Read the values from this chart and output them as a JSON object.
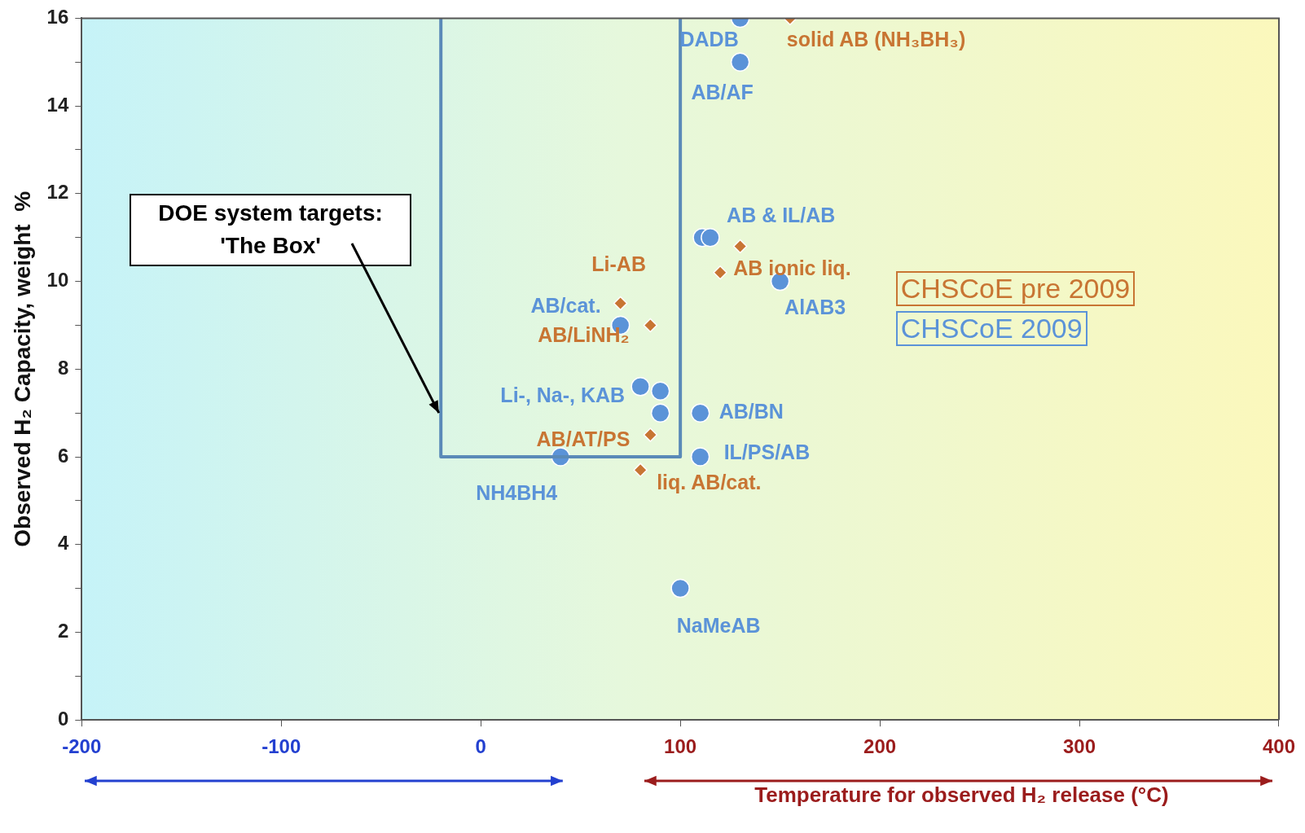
{
  "chart_data": {
    "type": "scatter",
    "xlabel": "Temperature for observed H₂ release (°C)",
    "ylabel": "Observed H₂ Capacity, weight  %",
    "xlim": [
      -200,
      400
    ],
    "xticks": [
      -200,
      -100,
      0,
      100,
      200,
      300,
      400
    ],
    "ylim": [
      0,
      16
    ],
    "yticks": [
      0,
      {
        "value": 1,
        "label": null
      },
      2,
      {
        "value": 3,
        "label": null
      },
      4,
      {
        "value": 5,
        "label": null
      },
      6,
      {
        "value": 7,
        "label": null
      },
      8,
      {
        "value": 9,
        "label": null
      },
      10,
      {
        "value": 11,
        "label": null
      },
      12,
      {
        "value": 13,
        "label": null
      },
      14,
      {
        "value": 15,
        "label": null
      },
      16
    ],
    "grid": false,
    "legend": "right",
    "annotations": [
      {
        "text": "DOE system targets: 'The Box'",
        "x": -20,
        "y": 7
      }
    ],
    "series": [
      {
        "type": "line",
        "color": "#5a8ab8",
        "marker": "none",
        "line_style": "solid",
        "x": [
          -20,
          -20,
          100,
          100
        ],
        "values": [
          16,
          6,
          6,
          16
        ]
      },
      {
        "name": "CHSCoE pre 2009",
        "color": "#c87533",
        "marker": "diamond",
        "x": [
          155,
          130,
          120,
          70,
          85,
          85,
          80
        ],
        "values": [
          16,
          10.8,
          10.2,
          9.5,
          9,
          6.5,
          5.7
        ],
        "value_labels": [
          "solid AB (NH₃BH₃)",
          null,
          "AB ionic liq.",
          "Li-AB",
          "AB/LiNH₂",
          "AB/AT/PS",
          "liq. AB/cat."
        ]
      },
      {
        "name": "CHSCoE 2009",
        "color": "#5b93d8",
        "marker": "circle",
        "x": [
          130,
          130,
          111,
          115,
          150,
          70,
          80,
          90,
          90,
          110,
          110,
          40,
          100
        ],
        "values": [
          16,
          15,
          11,
          11,
          10,
          9,
          7.6,
          7.5,
          7,
          7,
          6,
          6,
          3
        ],
        "value_labels": [
          "DADB",
          "AB/AF",
          "AB & IL/AB",
          null,
          "AlAB3",
          "AB/cat.",
          "Li-, Na-, KAB",
          null,
          null,
          "AB/BN",
          "IL/PS/AB",
          "NH4BH4",
          "NaMeAB"
        ]
      }
    ]
  }
}
